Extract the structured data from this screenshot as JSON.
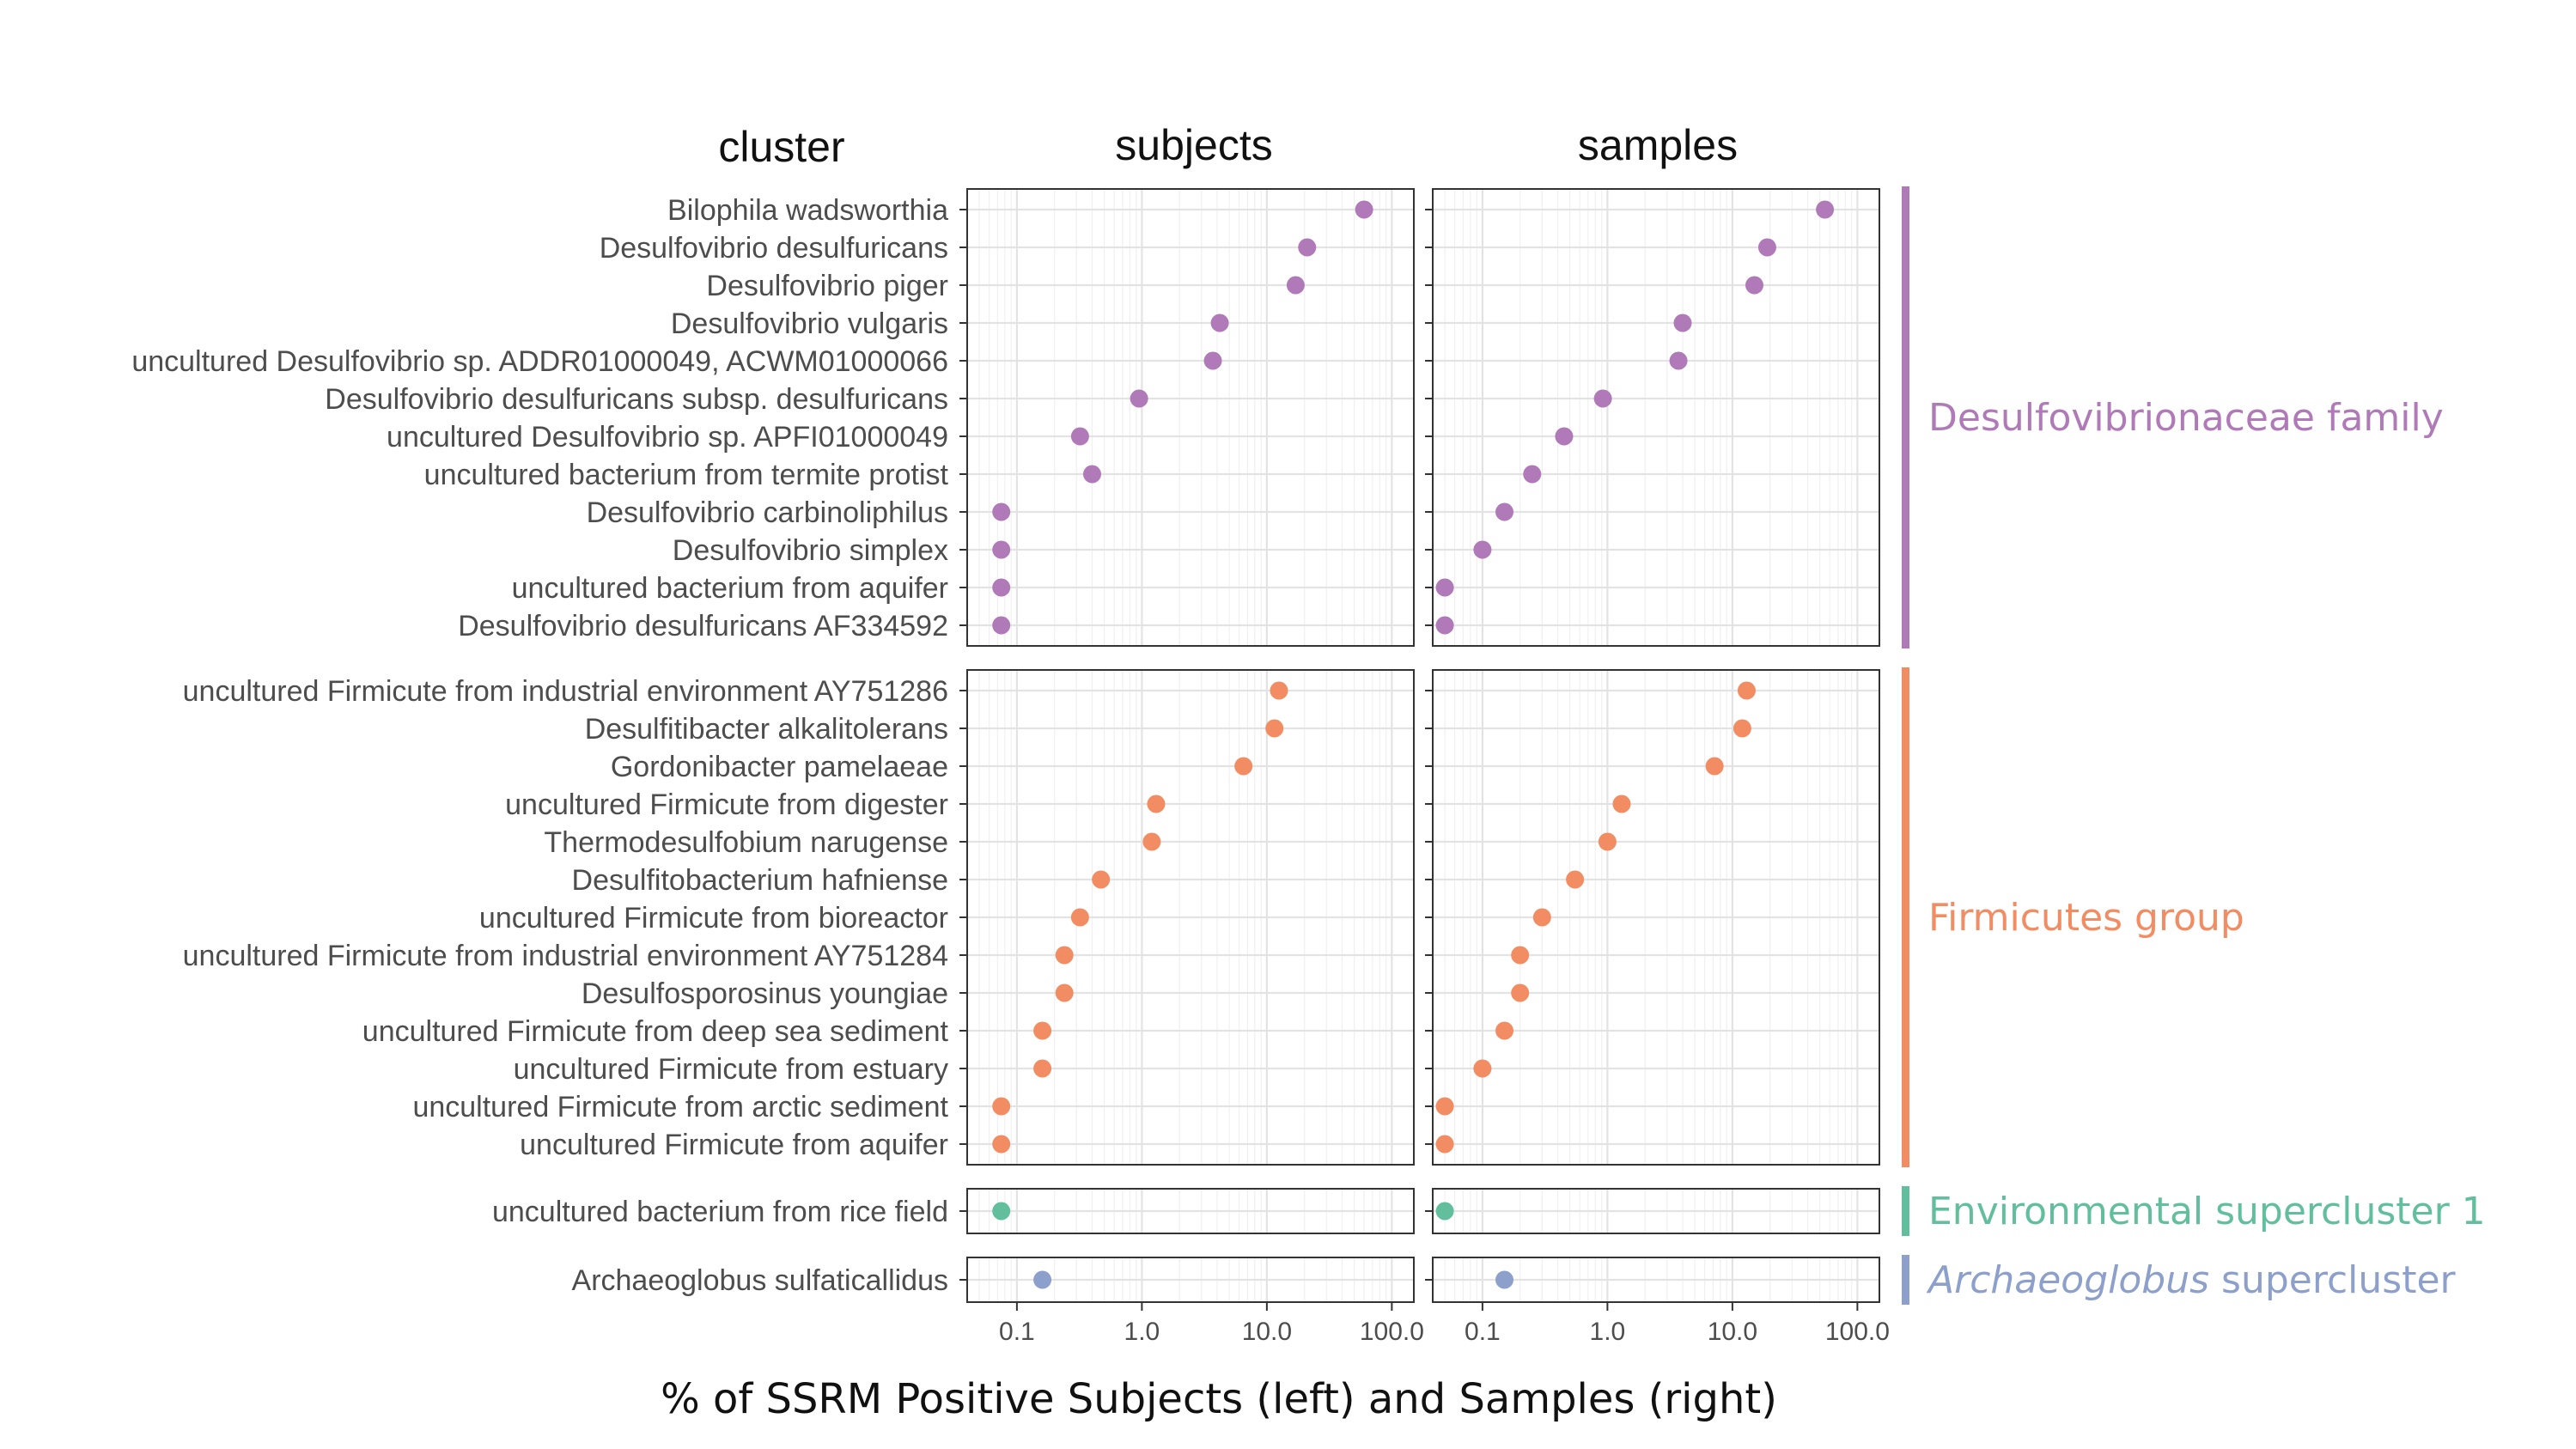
{
  "chart_data": {
    "type": "scatter",
    "column_headers": {
      "cluster": "cluster",
      "subjects": "subjects",
      "samples": "samples"
    },
    "xlabel": "% of SSRM Positive Subjects (left) and Samples (right)",
    "x_scale": "log10",
    "xlim": [
      0.04,
      150
    ],
    "x_ticks": [
      0.1,
      1,
      10,
      100
    ],
    "x_tick_labels": [
      "0.1",
      "1.0",
      "10.0",
      "100.0"
    ],
    "grid": true,
    "groups": [
      {
        "name": "Desulfovibrionaceae family",
        "name_italic": "",
        "name_rest": "",
        "color": "#b07ab8",
        "rows": [
          {
            "label": "Bilophila wadsworthia",
            "subjects": 60,
            "samples": 55
          },
          {
            "label": "Desulfovibrio desulfuricans",
            "subjects": 21,
            "samples": 19
          },
          {
            "label": "Desulfovibrio piger",
            "subjects": 17,
            "samples": 15
          },
          {
            "label": "Desulfovibrio vulgaris",
            "subjects": 4.2,
            "samples": 4.0
          },
          {
            "label": "uncultured Desulfovibrio sp. ADDR01000049, ACWM01000066",
            "subjects": 3.7,
            "samples": 3.7
          },
          {
            "label": "Desulfovibrio desulfuricans subsp. desulfuricans",
            "subjects": 0.95,
            "samples": 0.92
          },
          {
            "label": "uncultured Desulfovibrio sp. APFI01000049",
            "subjects": 0.32,
            "samples": 0.45
          },
          {
            "label": "uncultured bacterium from termite protist",
            "subjects": 0.4,
            "samples": 0.25
          },
          {
            "label": "Desulfovibrio carbinoliphilus",
            "subjects": 0.075,
            "samples": 0.15
          },
          {
            "label": "Desulfovibrio simplex",
            "subjects": 0.075,
            "samples": 0.1
          },
          {
            "label": "uncultured bacterium from aquifer",
            "subjects": 0.075,
            "samples": 0.05
          },
          {
            "label": "Desulfovibrio desulfuricans AF334592",
            "subjects": 0.075,
            "samples": 0.05
          }
        ]
      },
      {
        "name": "Firmicutes group",
        "name_italic": "",
        "name_rest": "",
        "color": "#f28c62",
        "rows": [
          {
            "label": "uncultured Firmicute from industrial environment AY751286",
            "subjects": 12.5,
            "samples": 13
          },
          {
            "label": "Desulfitibacter alkalitolerans",
            "subjects": 11.5,
            "samples": 12
          },
          {
            "label": "Gordonibacter pamelaeae",
            "subjects": 6.5,
            "samples": 7.2
          },
          {
            "label": "uncultured Firmicute from digester",
            "subjects": 1.3,
            "samples": 1.3
          },
          {
            "label": "Thermodesulfobium narugense",
            "subjects": 1.2,
            "samples": 1.0
          },
          {
            "label": "Desulfitobacterium hafniense",
            "subjects": 0.47,
            "samples": 0.55
          },
          {
            "label": "uncultured Firmicute from bioreactor",
            "subjects": 0.32,
            "samples": 0.3
          },
          {
            "label": "uncultured Firmicute from industrial environment AY751284",
            "subjects": 0.24,
            "samples": 0.2
          },
          {
            "label": "Desulfosporosinus youngiae",
            "subjects": 0.24,
            "samples": 0.2
          },
          {
            "label": "uncultured Firmicute from deep sea sediment",
            "subjects": 0.16,
            "samples": 0.15
          },
          {
            "label": "uncultured Firmicute from estuary",
            "subjects": 0.16,
            "samples": 0.1
          },
          {
            "label": "uncultured Firmicute from arctic sediment",
            "subjects": 0.075,
            "samples": 0.05
          },
          {
            "label": "uncultured Firmicute from aquifer",
            "subjects": 0.075,
            "samples": 0.05
          }
        ]
      },
      {
        "name": "Environmental supercluster 1",
        "name_italic": "",
        "name_rest": "",
        "color": "#62bf9e",
        "rows": [
          {
            "label": "uncultured bacterium from rice field",
            "subjects": 0.075,
            "samples": 0.05
          }
        ]
      },
      {
        "name": "",
        "name_italic": "Archaeoglobus",
        "name_rest": " supercluster",
        "color": "#8da0cb",
        "rows": [
          {
            "label": "Archaeoglobus sulfaticallidus",
            "subjects": 0.16,
            "samples": 0.15
          }
        ]
      }
    ]
  }
}
